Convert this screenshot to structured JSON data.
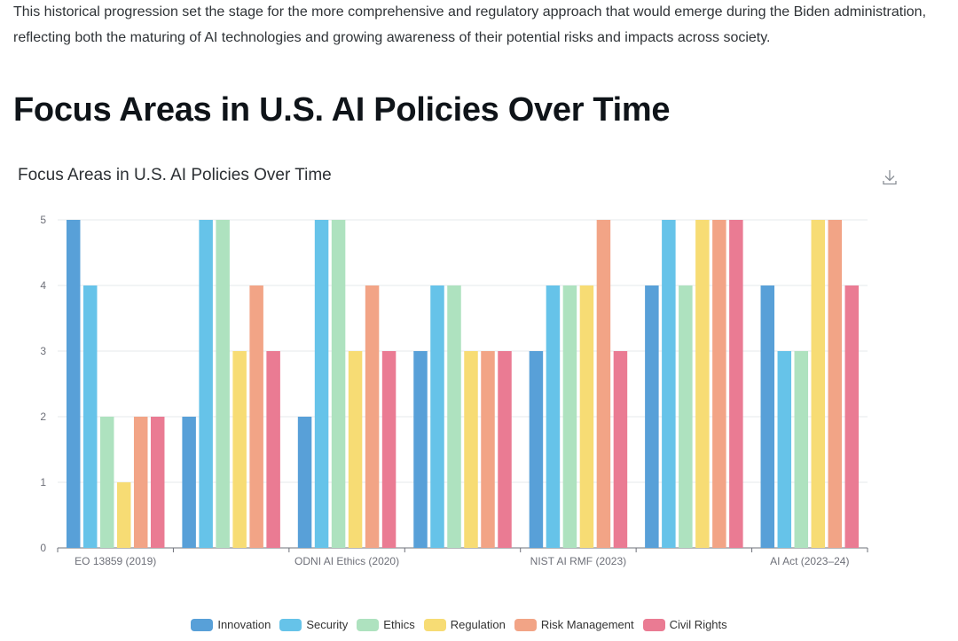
{
  "intro": {
    "text": "This historical progression set the stage for the more comprehensive and regulatory approach that would emerge during the Biden administration, reflecting both the maturing of AI technologies and growing awareness of their potential risks and impacts across society."
  },
  "page_title": "Focus Areas in U.S. AI Policies Over Time",
  "download_icon": "download-icon",
  "chart_data": {
    "type": "bar",
    "title": "Focus Areas in U.S. AI Policies Over Time",
    "categories": [
      "EO 13859 (2019)",
      "",
      "ODNI AI Ethics (2020)",
      "",
      "NIST AI RMF (2023)",
      "",
      "AI Act (2023–24)"
    ],
    "series": [
      {
        "name": "Innovation",
        "color": "#58a0d8",
        "values": [
          5,
          2,
          2,
          3,
          3,
          4,
          4
        ]
      },
      {
        "name": "Security",
        "color": "#66c3e9",
        "values": [
          4,
          5,
          5,
          4,
          4,
          5,
          3
        ]
      },
      {
        "name": "Ethics",
        "color": "#aee2bf",
        "values": [
          2,
          5,
          5,
          4,
          4,
          4,
          3
        ]
      },
      {
        "name": "Regulation",
        "color": "#f7dc74",
        "values": [
          1,
          3,
          3,
          3,
          4,
          5,
          5
        ]
      },
      {
        "name": "Risk Management",
        "color": "#f2a486",
        "values": [
          2,
          4,
          4,
          3,
          5,
          5,
          5
        ]
      },
      {
        "name": "Civil Rights",
        "color": "#ea7b93",
        "values": [
          2,
          3,
          3,
          3,
          3,
          5,
          4
        ]
      }
    ],
    "yticks": [
      0,
      1,
      2,
      3,
      4,
      5
    ],
    "ylim": [
      0,
      5
    ],
    "xlabel": "",
    "ylabel": "",
    "legend_position": "bottom-center",
    "grid": true
  }
}
